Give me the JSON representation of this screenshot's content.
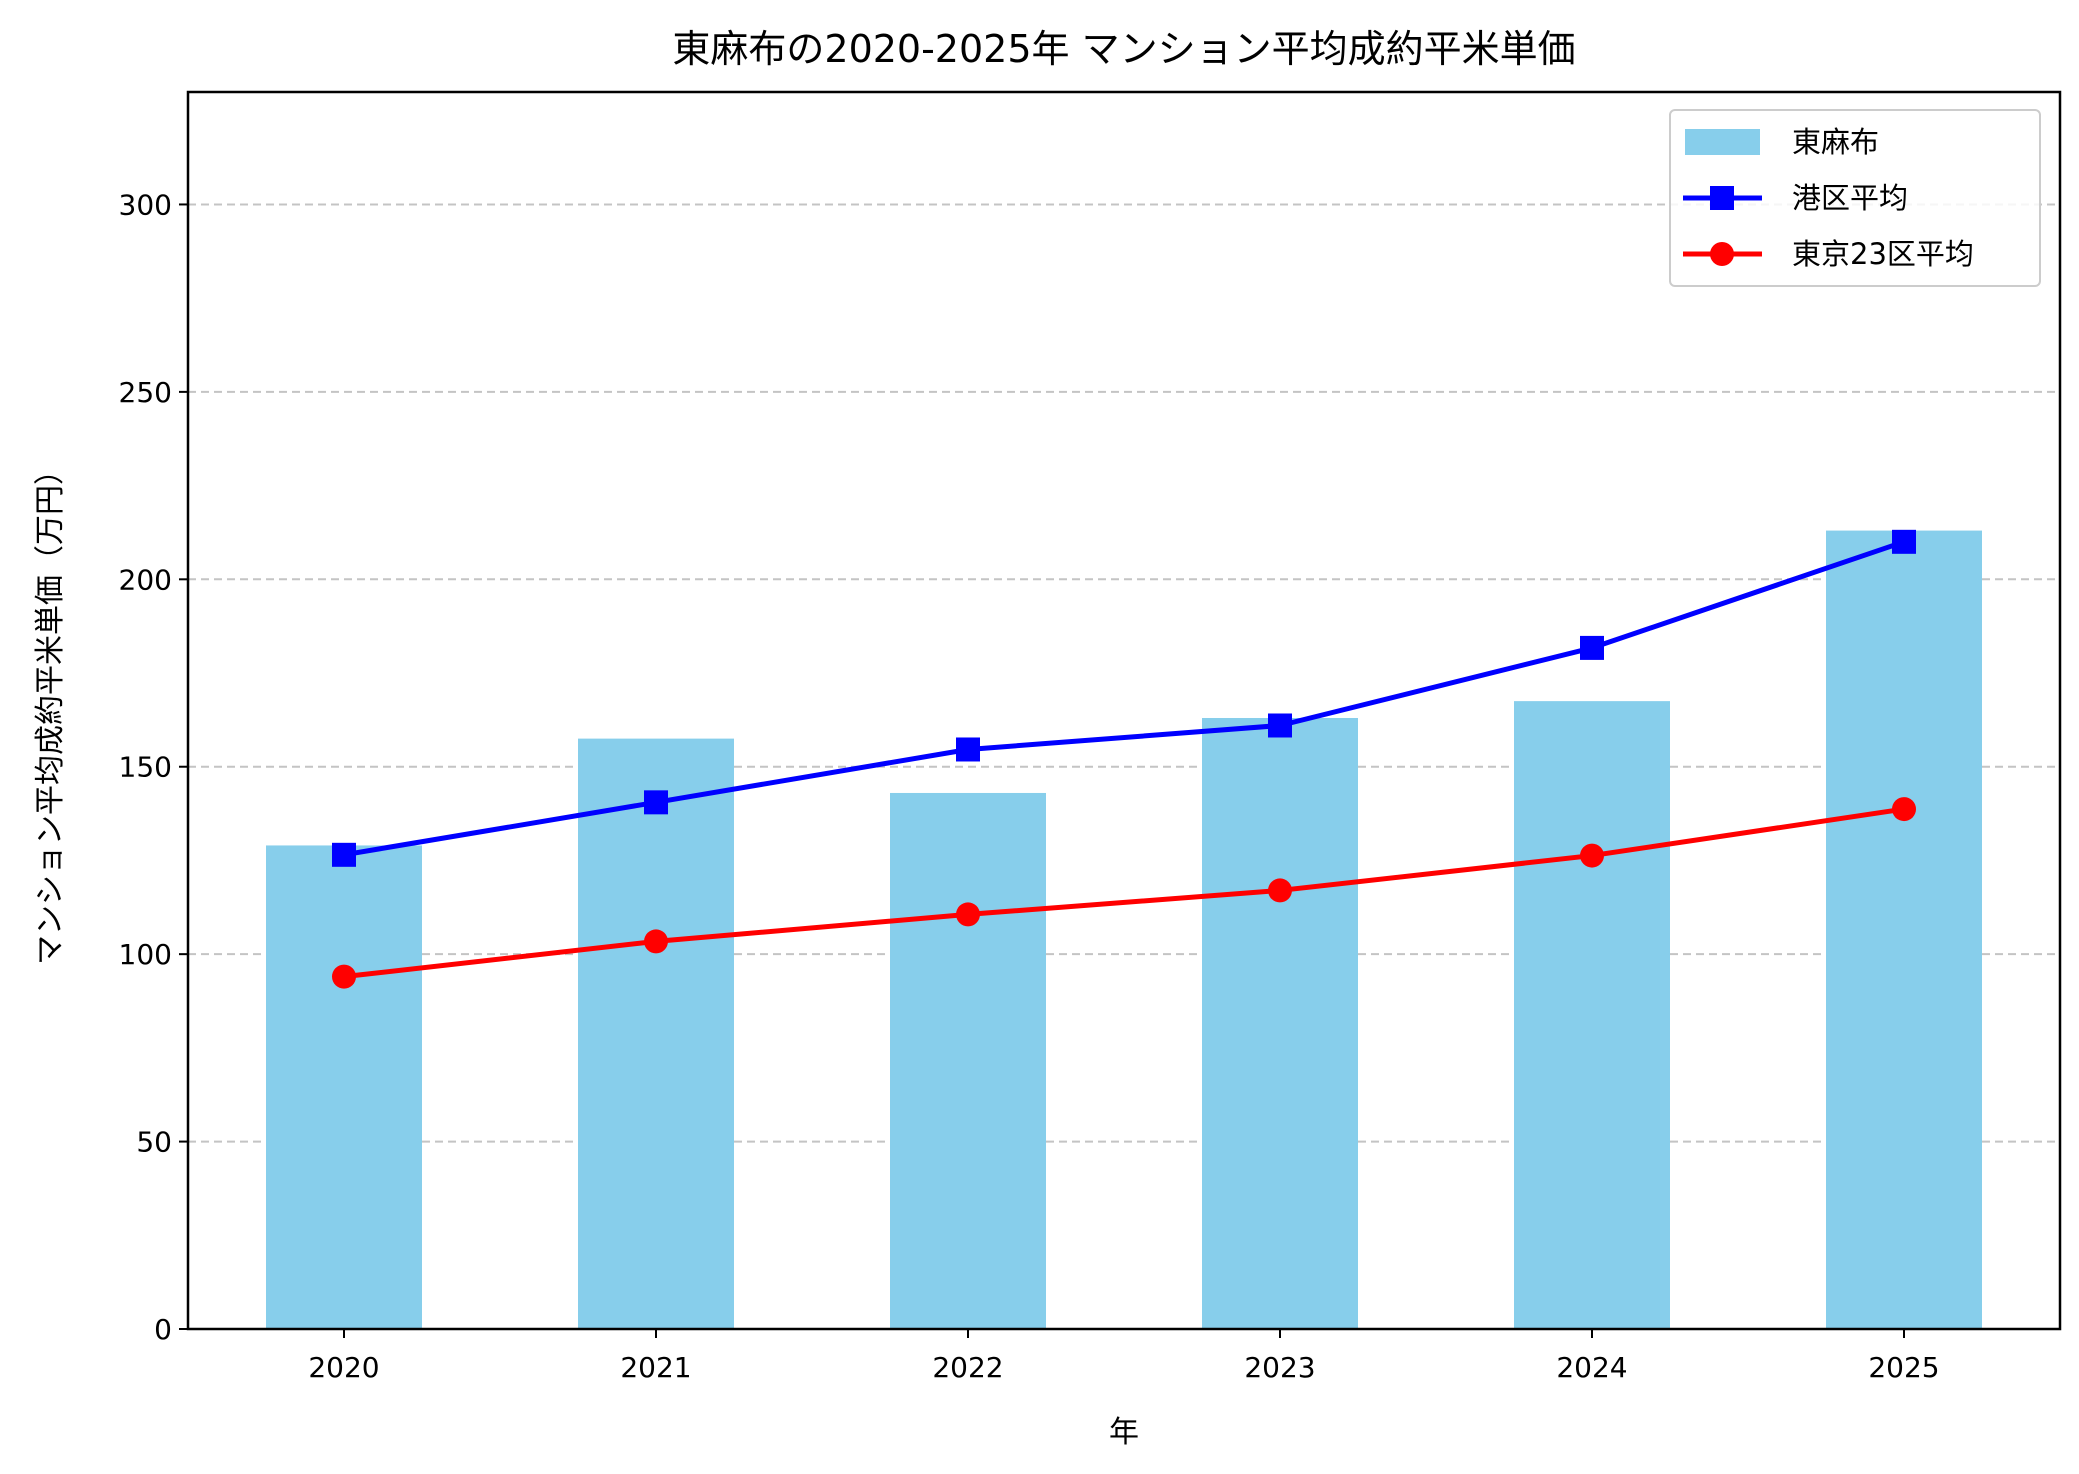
{
  "chart_data": {
    "type": "bar+line",
    "title": "東麻布の2020-2025年 マンション平均成約平米単価",
    "xlabel": "年",
    "ylabel": "マンション平均成約平米単価（万円）",
    "categories": [
      "2020",
      "2021",
      "2022",
      "2023",
      "2024",
      "2025"
    ],
    "ylim": [
      0,
      330
    ],
    "yticks": [
      0,
      50,
      100,
      150,
      200,
      250,
      300
    ],
    "grid": "y-dashed",
    "legend": "top-right",
    "series": [
      {
        "name": "東麻布",
        "type": "bar",
        "color": "#87CEEB",
        "values": [
          129,
          157.5,
          143,
          163,
          167.5,
          213
        ]
      },
      {
        "name": "港区平均",
        "type": "line",
        "marker": "square",
        "color": "#0000FF",
        "values": [
          126.5,
          140.5,
          154.6,
          161,
          181.7,
          210
        ]
      },
      {
        "name": "東京23区平均",
        "type": "line",
        "marker": "circle",
        "color": "#FF0000",
        "values": [
          94,
          103.4,
          110.6,
          117,
          126.3,
          138.7
        ]
      }
    ]
  }
}
